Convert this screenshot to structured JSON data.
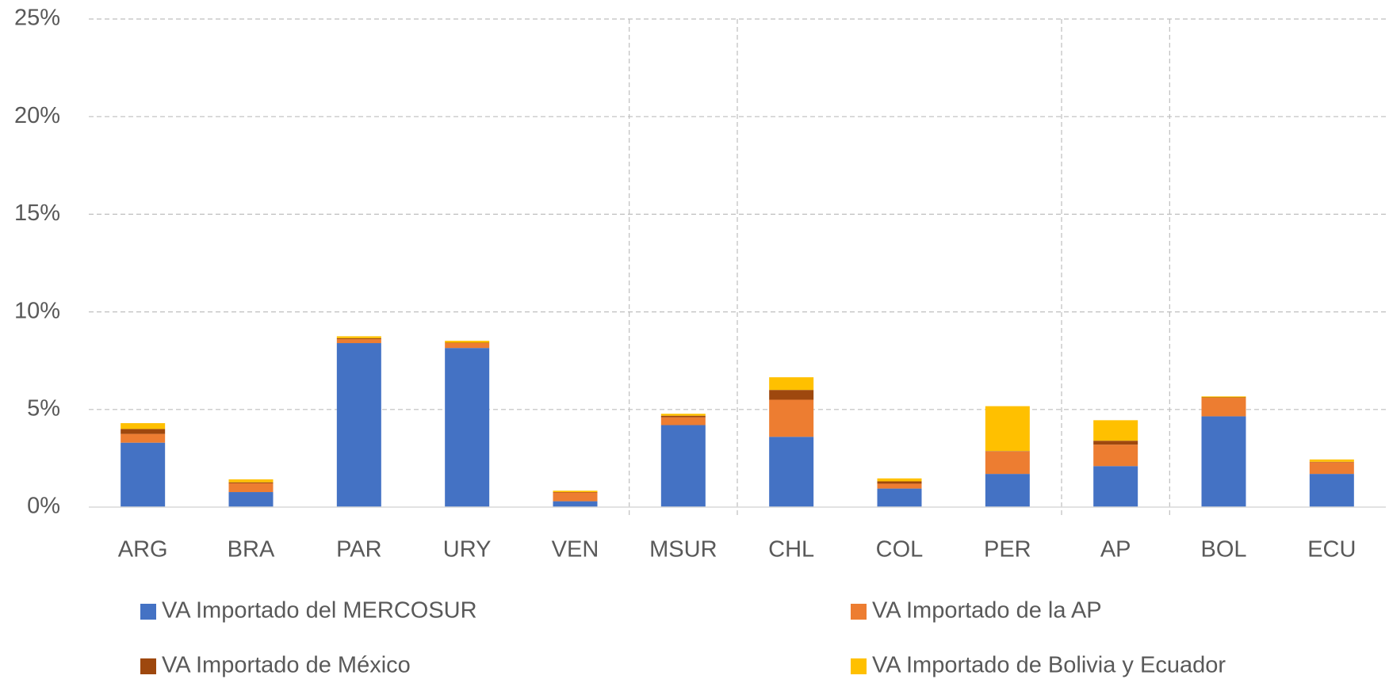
{
  "chart_data": {
    "type": "stacked_bar",
    "categories": [
      "ARG",
      "BRA",
      "PAR",
      "URY",
      "VEN",
      "MSUR",
      "CHL",
      "COL",
      "PER",
      "AP",
      "BOL",
      "ECU"
    ],
    "series": [
      {
        "name": "VA Importado del MERCOSUR",
        "color": "#4472c4",
        "values": [
          3.3,
          0.77,
          8.4,
          8.15,
          0.3,
          4.2,
          3.6,
          0.95,
          1.7,
          2.1,
          4.65,
          1.7
        ]
      },
      {
        "name": "VA Importado de la AP",
        "color": "#ed7d31",
        "values": [
          0.45,
          0.45,
          0.2,
          0.25,
          0.45,
          0.4,
          1.9,
          0.25,
          1.15,
          1.1,
          0.95,
          0.6
        ]
      },
      {
        "name": "VA Importado de México",
        "color": "#9e480e",
        "values": [
          0.25,
          0.05,
          0.05,
          0.02,
          0.02,
          0.08,
          0.5,
          0.12,
          0.02,
          0.2,
          0.02,
          0.02
        ]
      },
      {
        "name": "VA Importado de Bolivia y Ecuador",
        "color": "#ffc000",
        "values": [
          0.3,
          0.15,
          0.1,
          0.1,
          0.07,
          0.1,
          0.65,
          0.15,
          2.3,
          1.05,
          0.05,
          0.12
        ]
      }
    ],
    "ylim": [
      0,
      25
    ],
    "yticks": [
      {
        "value": 0,
        "label": "0%"
      },
      {
        "value": 5,
        "label": "5%"
      },
      {
        "value": 10,
        "label": "10%"
      },
      {
        "value": 15,
        "label": "15%"
      },
      {
        "value": 20,
        "label": "20%"
      },
      {
        "value": 25,
        "label": "25%"
      }
    ],
    "grid": true
  }
}
